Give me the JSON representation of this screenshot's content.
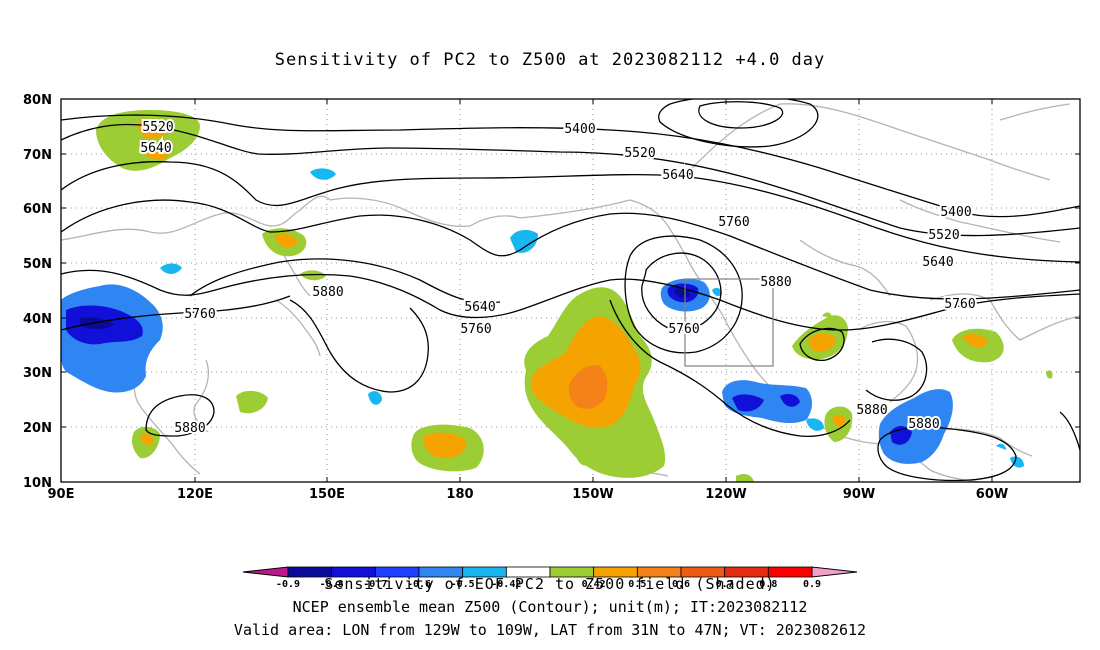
{
  "title": "Sensitivity of PC2 to Z500 at 2023082112 +4.0 day",
  "map": {
    "lon_ticks": [
      "90E",
      "120E",
      "150E",
      "180",
      "150W",
      "120W",
      "90W",
      "60W"
    ],
    "lat_ticks": [
      "80N",
      "70N",
      "60N",
      "50N",
      "40N",
      "30N",
      "20N",
      "10N"
    ],
    "contour_labels": [
      {
        "text": "5520",
        "id": "c5520a"
      },
      {
        "text": "5640",
        "id": "c5640a"
      },
      {
        "text": "5400",
        "id": "c5400a"
      },
      {
        "text": "5520",
        "id": "c5520b"
      },
      {
        "text": "5640",
        "id": "c5640b"
      },
      {
        "text": "5760",
        "id": "c5760b"
      },
      {
        "text": "5880",
        "id": "c5880b"
      },
      {
        "text": "5400",
        "id": "c5400c"
      },
      {
        "text": "5520",
        "id": "c5520c"
      },
      {
        "text": "5640",
        "id": "c5640c"
      },
      {
        "text": "5760",
        "id": "c5760c"
      },
      {
        "text": "5760",
        "id": "c5760a"
      },
      {
        "text": "5880",
        "id": "c5880a"
      },
      {
        "text": "5640",
        "id": "c5640d"
      },
      {
        "text": "5760",
        "id": "c5760d"
      },
      {
        "text": "5760",
        "id": "c5760e"
      },
      {
        "text": "5880",
        "id": "c5880c"
      },
      {
        "text": "5880",
        "id": "c5880d"
      },
      {
        "text": "5880",
        "id": "c5880e"
      }
    ],
    "valid_area": {
      "lon": "129W to 109W",
      "lat": "31N to 47N"
    }
  },
  "colorbar": {
    "colors": [
      "#c0168c",
      "#0a0a9a",
      "#1010d8",
      "#2040ff",
      "#2f86f2",
      "#18b7f2",
      "#ffffff",
      "#9ccd34",
      "#f5a300",
      "#f58218",
      "#f05a14",
      "#e42c10",
      "#fa0000",
      "#f2a0c8"
    ],
    "labels": [
      "-0.9",
      "-0.8",
      "-0.7",
      "-0.6",
      "-0.5",
      "-0.42",
      "0.42",
      "0.5",
      "0.6",
      "0.7",
      "0.8",
      "0.9"
    ]
  },
  "footer": {
    "line1": "Sensitivity of EOF PC2 to Z500 field (Shaded)",
    "line2": "NCEP ensemble mean Z500 (Contour); unit(m); IT:2023082112",
    "line3": "Valid area: LON from 129W to 109W, LAT from 31N to 47N; VT: 2023082612"
  }
}
